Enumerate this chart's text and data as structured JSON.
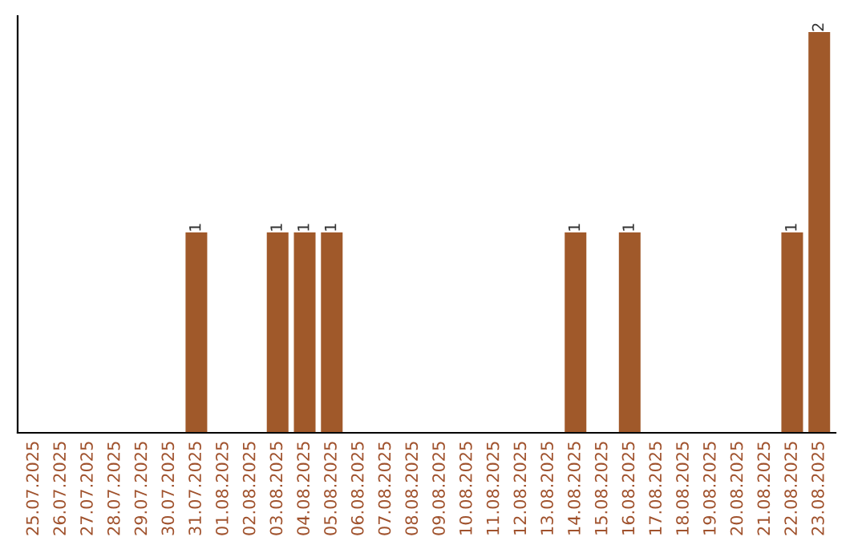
{
  "chart_data": {
    "type": "bar",
    "categories": [
      "25.07.2025",
      "26.07.2025",
      "27.07.2025",
      "28.07.2025",
      "29.07.2025",
      "30.07.2025",
      "31.07.2025",
      "01.08.2025",
      "02.08.2025",
      "03.08.2025",
      "04.08.2025",
      "05.08.2025",
      "06.08.2025",
      "07.08.2025",
      "08.08.2025",
      "09.08.2025",
      "10.08.2025",
      "11.08.2025",
      "12.08.2025",
      "13.08.2025",
      "14.08.2025",
      "15.08.2025",
      "16.08.2025",
      "17.08.2025",
      "18.08.2025",
      "19.08.2025",
      "20.08.2025",
      "21.08.2025",
      "22.08.2025",
      "23.08.2025"
    ],
    "values": [
      0,
      0,
      0,
      0,
      0,
      0,
      1,
      0,
      0,
      1,
      1,
      1,
      0,
      0,
      0,
      0,
      0,
      0,
      0,
      0,
      1,
      0,
      1,
      0,
      0,
      0,
      0,
      0,
      1,
      2
    ],
    "value_labels": [
      null,
      null,
      null,
      null,
      null,
      null,
      "1",
      null,
      null,
      "1",
      "1",
      "1",
      null,
      null,
      null,
      null,
      null,
      null,
      null,
      null,
      "1",
      null,
      "1",
      null,
      null,
      null,
      null,
      null,
      "1",
      "2"
    ],
    "color": "#a0592a",
    "ylim": [
      0,
      2.08
    ],
    "tick_labels": "x",
    "grid": false,
    "legend": false
  }
}
